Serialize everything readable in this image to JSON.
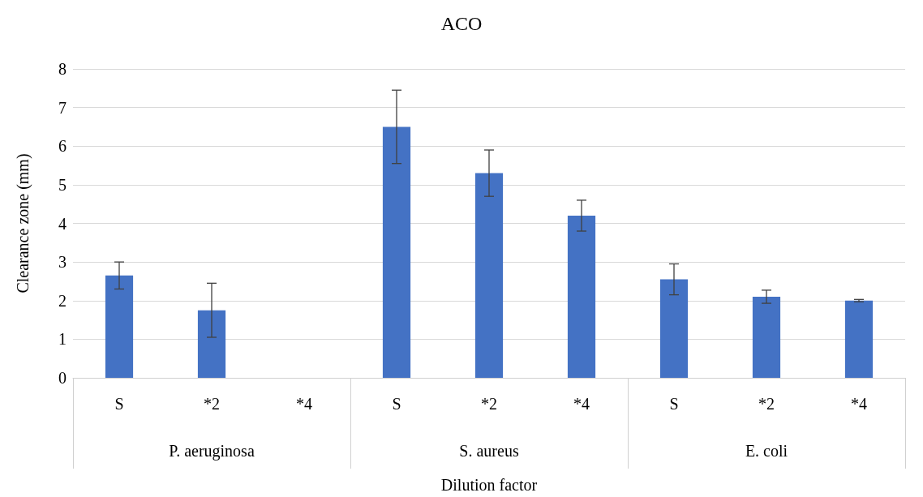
{
  "chart_data": {
    "type": "bar",
    "title": "ACO",
    "xlabel": "Dilution factor",
    "ylabel": "Clearance zone (mm)",
    "categories": [
      "S",
      "*2",
      "*4",
      "S",
      "*2",
      "*4",
      "S",
      "*2",
      "*4"
    ],
    "values": [
      2.65,
      1.75,
      0,
      6.5,
      5.3,
      4.2,
      2.55,
      2.1,
      2.0
    ],
    "errors": [
      0.35,
      0.7,
      null,
      0.95,
      0.6,
      0.4,
      0.4,
      0.17,
      0.03
    ],
    "color": "#4472c4",
    "annotations": [
      "P. aeruginosa",
      "S. aureus",
      "E. coli"
    ],
    "ylim": [
      0,
      8
    ],
    "yticks": [
      0,
      1,
      2,
      3,
      4,
      5,
      6,
      7,
      8
    ],
    "grid": "y"
  }
}
